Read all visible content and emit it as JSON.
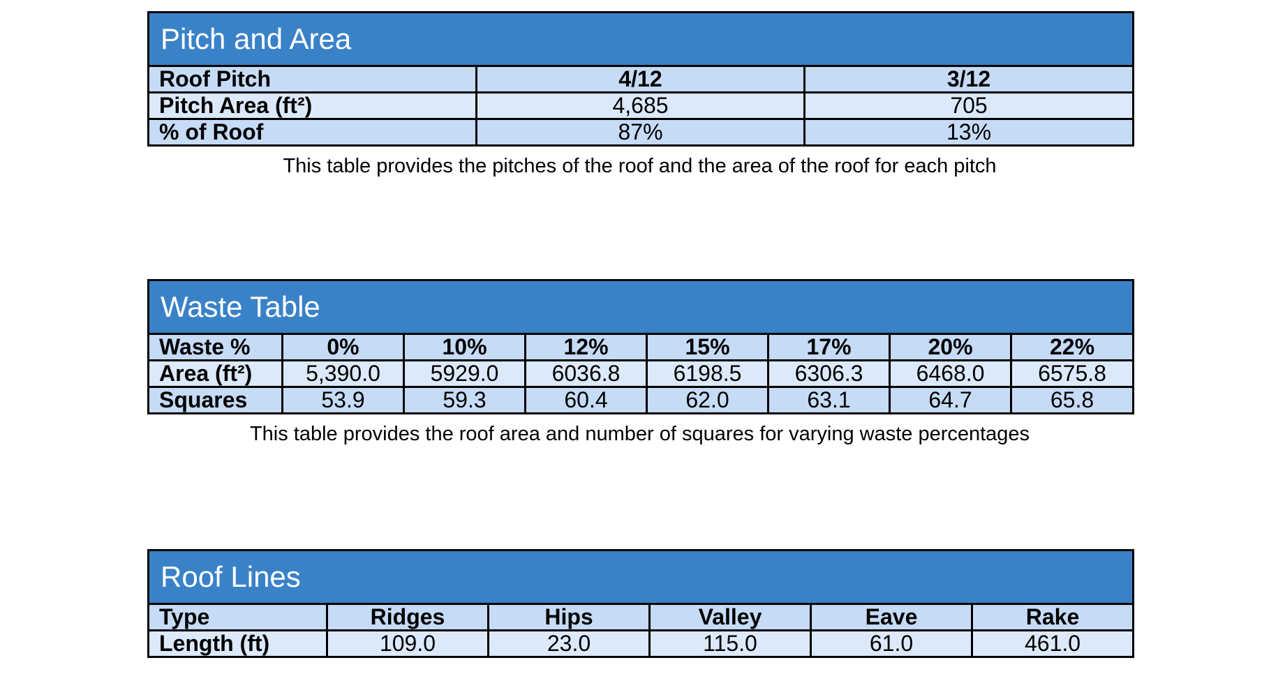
{
  "pitch": {
    "title": "Pitch and Area",
    "rows": [
      {
        "label": "Roof Pitch",
        "values": [
          "4/12",
          "3/12"
        ]
      },
      {
        "label": "Pitch Area (ft²)",
        "values": [
          "4,685",
          "705"
        ]
      },
      {
        "label": "% of Roof",
        "values": [
          "87%",
          "13%"
        ]
      }
    ],
    "caption": "This table provides the pitches of the roof and the area of the roof for each pitch"
  },
  "waste": {
    "title": "Waste Table",
    "rows": [
      {
        "label": "Waste %",
        "values": [
          "0%",
          "10%",
          "12%",
          "15%",
          "17%",
          "20%",
          "22%"
        ]
      },
      {
        "label": "Area (ft²)",
        "values": [
          "5,390.0",
          "5929.0",
          "6036.8",
          "6198.5",
          "6306.3",
          "6468.0",
          "6575.8"
        ]
      },
      {
        "label": "Squares",
        "values": [
          "53.9",
          "59.3",
          "60.4",
          "62.0",
          "63.1",
          "64.7",
          "65.8"
        ]
      }
    ],
    "caption": "This table provides the roof area and number of squares for varying waste percentages"
  },
  "lines": {
    "title": "Roof Lines",
    "rows": [
      {
        "label": "Type",
        "values": [
          "Ridges",
          "Hips",
          "Valley",
          "Eave",
          "Rake"
        ]
      },
      {
        "label": "Length (ft)",
        "values": [
          "109.0",
          "23.0",
          "115.0",
          "61.0",
          "461.0"
        ]
      }
    ]
  },
  "colors": {
    "header_blue": "#3a82c8",
    "row_light": "#dce9fa",
    "row_mid": "#c6dbf6"
  }
}
